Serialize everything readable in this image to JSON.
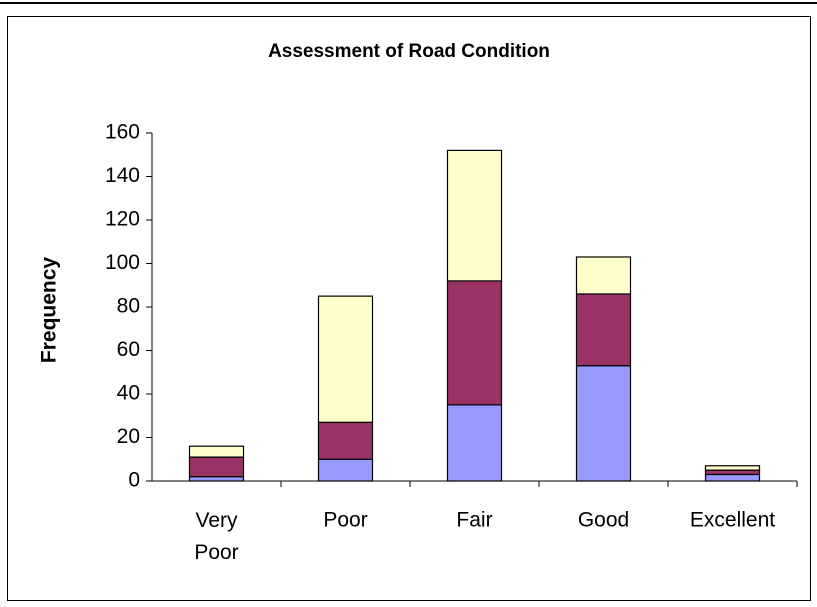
{
  "chart_data": {
    "type": "bar",
    "stacked": true,
    "title": "Assessment of Road Condition",
    "y_label": "Frequency",
    "categories": [
      "Very Poor",
      "Poor",
      "Fair",
      "Good",
      "Excellent"
    ],
    "series": [
      {
        "color": "#9999ff",
        "values": [
          2,
          10,
          35,
          53,
          3
        ]
      },
      {
        "color": "#993366",
        "values": [
          9,
          17,
          57,
          33,
          2
        ]
      },
      {
        "color": "#ffffcc",
        "values": [
          5,
          58,
          60,
          17,
          2
        ]
      }
    ],
    "ylim": [
      0,
      160
    ],
    "yticks": [
      0,
      20,
      40,
      60,
      80,
      100,
      120,
      140,
      160
    ],
    "grid": false
  }
}
